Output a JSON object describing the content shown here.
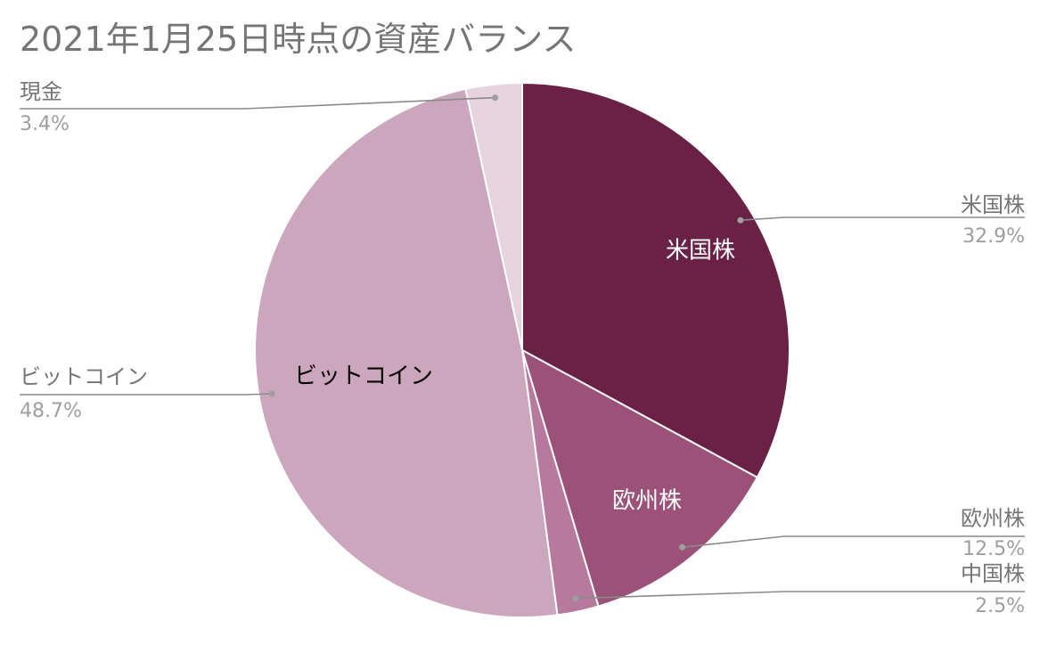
{
  "chart_data": {
    "type": "pie",
    "title": "2021年1月25日時点の資産バランス",
    "slices": [
      {
        "label": "米国株",
        "percent_label": "32.9%",
        "value": 32.9,
        "color": "#6b2046",
        "inner_label": "米国株",
        "inner_label_color": "#ffffff"
      },
      {
        "label": "欧州株",
        "percent_label": "12.5%",
        "value": 12.5,
        "color": "#9b5178",
        "inner_label": "欧州株",
        "inner_label_color": "#ffffff"
      },
      {
        "label": "中国株",
        "percent_label": "2.5%",
        "value": 2.5,
        "color": "#b7799c",
        "inner_label": "",
        "inner_label_color": "#ffffff"
      },
      {
        "label": "ビットコイン",
        "percent_label": "48.7%",
        "value": 48.7,
        "color": "#cca6bd",
        "inner_label": "ビットコイン",
        "inner_label_color": "#000000"
      },
      {
        "label": "現金",
        "percent_label": "3.4%",
        "value": 3.4,
        "color": "#e7d3de",
        "inner_label": "",
        "inner_label_color": "#000000"
      }
    ],
    "start_angle": "12 o'clock",
    "direction": "clockwise",
    "slice_border_color": "#ffffff",
    "leader_line_color": "#8a8a8a"
  }
}
